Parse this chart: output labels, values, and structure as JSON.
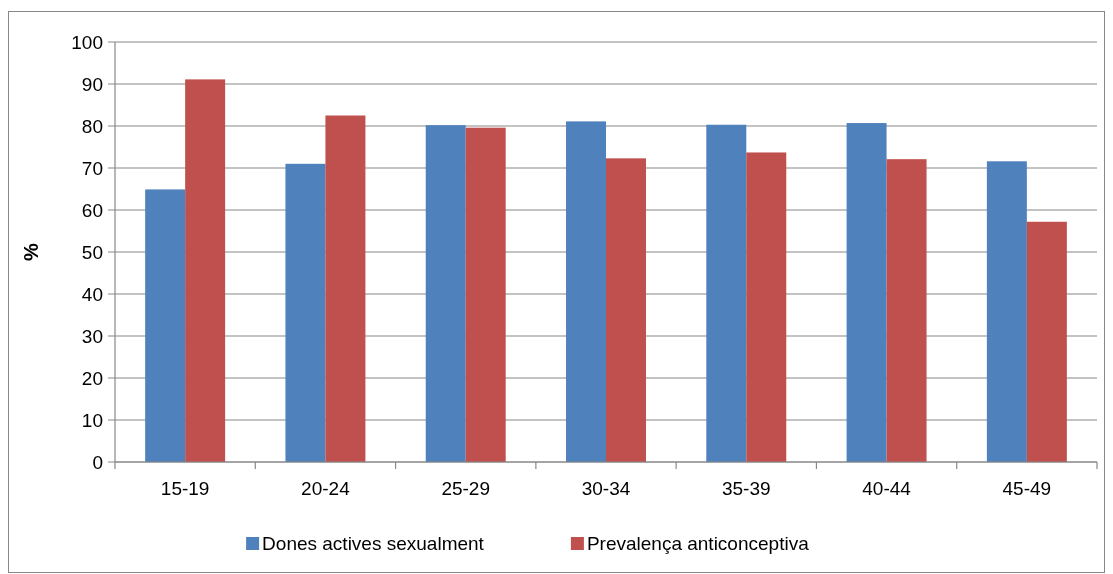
{
  "chart_data": {
    "type": "bar",
    "ylabel": "%",
    "categories": [
      "15-19",
      "20-24",
      "25-29",
      "30-34",
      "35-39",
      "40-44",
      "45-49"
    ],
    "series": [
      {
        "name": "Dones actives sexualment",
        "color": "#4f81bd",
        "values": [
          64.9,
          71.0,
          80.2,
          81.1,
          80.3,
          80.7,
          71.6
        ]
      },
      {
        "name": "Prevalença anticonceptiva",
        "color": "#c0504d",
        "values": [
          91.1,
          82.5,
          79.6,
          72.3,
          73.7,
          72.1,
          57.2
        ]
      }
    ],
    "ylim": [
      0,
      100
    ],
    "yticks": [
      0,
      10,
      20,
      30,
      40,
      50,
      60,
      70,
      80,
      90,
      100
    ],
    "grid": "y",
    "legend": "bottom"
  }
}
